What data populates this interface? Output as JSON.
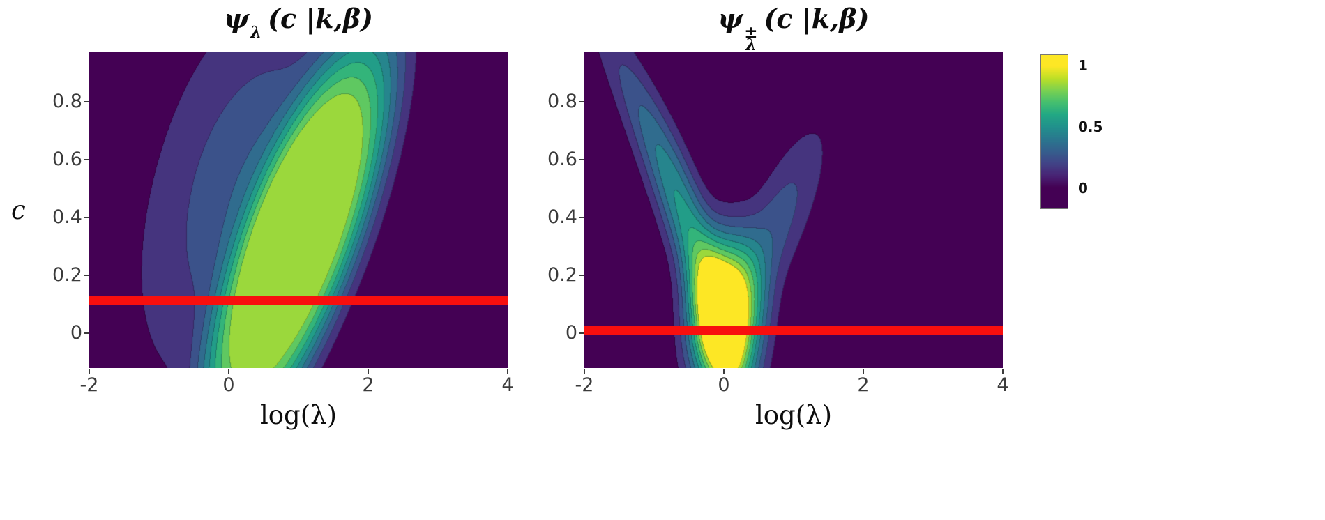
{
  "figure": {
    "background": "#ffffff",
    "ylabel": "c",
    "colorbar": {
      "colormap": "viridis",
      "vmin": -0.17,
      "vmax": 1.09,
      "ticks": [
        {
          "label": "1",
          "value": 1.0
        },
        {
          "label": "0.5",
          "value": 0.5
        },
        {
          "label": "0",
          "value": 0.0
        }
      ]
    }
  },
  "chart_data": [
    {
      "type": "heatmap",
      "side": "left",
      "title": {
        "base": "ψ",
        "sub": "λ",
        "sup": "",
        "args": "(c |k,β)"
      },
      "xlabel": "log(λ)",
      "ylabel": "c",
      "xlim": [
        -2,
        4
      ],
      "ylim": [
        -0.12,
        0.97
      ],
      "x_ticks": [
        -2,
        0,
        2,
        4
      ],
      "y_ticks": [
        0.8,
        0.6,
        0.4,
        0.2,
        0
      ],
      "colormap": "viridis",
      "contour_levels": 10,
      "value_cap": 0.87,
      "red_line": {
        "c": 0.115,
        "color": "#f80f0e",
        "thickness": 13
      },
      "density_model": {
        "description": "tilted elongated ridge, peak ~0.87 (yellow-green core) leaning right with increasing c",
        "components": [
          {
            "p": 2,
            "amp": 0.87,
            "x0": 0.55,
            "shear": 1.45,
            "curve": 0.0,
            "c0": 0.3,
            "sx": 0.72,
            "sc": 0.62
          },
          {
            "p": 1,
            "amp": 0.3,
            "x0": -0.15,
            "shear": 1.2,
            "curve": -0.3,
            "c0": 0.5,
            "sx": 1.0,
            "sc": 0.45
          }
        ]
      }
    },
    {
      "type": "heatmap",
      "side": "right",
      "title": {
        "base": "ψ",
        "sub": "λ",
        "sup": "±",
        "args": "(c |k,β)"
      },
      "xlabel": "log(λ)",
      "ylabel": "c",
      "xlim": [
        -2,
        4
      ],
      "ylim": [
        -0.12,
        0.97
      ],
      "x_ticks": [
        -2,
        0,
        2,
        4
      ],
      "y_ticks": [
        0.8,
        0.6,
        0.4,
        0.2,
        0
      ],
      "colormap": "viridis",
      "contour_levels": 10,
      "value_cap": 1.0,
      "red_line": {
        "c": 0.01,
        "color": "#f80f0e",
        "thickness": 13
      },
      "density_model": {
        "description": "bright yellow core near log(lambda)=0, c~0.05, with curved teal arm rising up-left and faint dark-blue arm up-right (V shape)",
        "components": [
          {
            "p": 1.2,
            "amp": 1.0,
            "x0": 0.02,
            "shear": 0.1,
            "curve": 0.0,
            "c0": 0.06,
            "sx": 0.38,
            "sc": 0.2
          },
          {
            "p": 1,
            "amp": 0.55,
            "x0": -0.05,
            "shear": -1.05,
            "curve": -0.5,
            "c0": 0.3,
            "sx": 0.24,
            "sc": 0.44
          },
          {
            "p": 1,
            "amp": 0.26,
            "x0": 0.1,
            "shear": 1.7,
            "curve": 0.0,
            "c0": 0.33,
            "sx": 0.32,
            "sc": 0.26
          }
        ]
      }
    }
  ]
}
